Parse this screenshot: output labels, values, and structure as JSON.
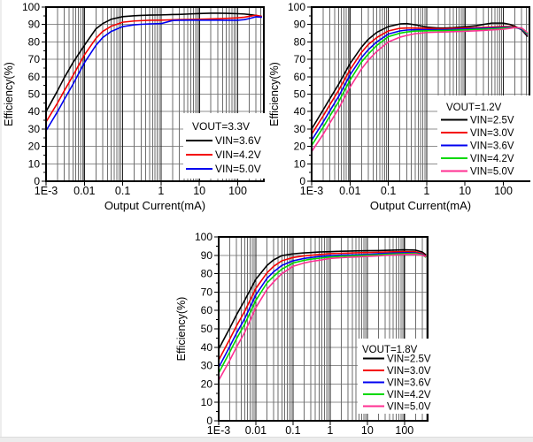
{
  "figure": {
    "description": "DC-DC converter efficiency vs output current characteristic curves",
    "background": "#ffffff"
  },
  "chart_data": [
    {
      "type": "line",
      "title": "",
      "legend_title": "VOUT=3.3V",
      "xlabel": "Output Current(mA)",
      "ylabel": "Efficiency(%)",
      "xscale": "log",
      "xlim": [
        0.001,
        480
      ],
      "ylim": [
        0,
        100
      ],
      "y_tick_step": 10,
      "x_tick_labels": [
        "1E-3",
        "0.01",
        "0.1",
        "1",
        "10",
        "100"
      ],
      "grid": true,
      "legend_position": "inside lower right",
      "x": [
        0.001,
        0.002,
        0.003,
        0.005,
        0.01,
        0.02,
        0.03,
        0.05,
        0.1,
        0.2,
        0.3,
        0.5,
        1,
        2,
        3,
        5,
        10,
        20,
        30,
        50,
        100,
        150,
        200,
        300,
        430
      ],
      "series": [
        {
          "name": "VIN=3.6V",
          "color": "#000000",
          "values": [
            40,
            52,
            59.5,
            68,
            78,
            87.5,
            90.5,
            93,
            94.5,
            95,
            95.2,
            95.4,
            95.5,
            95.7,
            95.8,
            96,
            96.3,
            96.5,
            96.5,
            96.4,
            96.2,
            96,
            95.7,
            95.2,
            94.6
          ]
        },
        {
          "name": "VIN=4.2V",
          "color": "#f40000",
          "values": [
            34,
            45,
            52,
            60.5,
            72.5,
            82,
            86,
            89,
            91.3,
            92,
            92.2,
            92.4,
            92.5,
            92.7,
            92.8,
            92.9,
            93,
            93.2,
            93.3,
            93.5,
            93.8,
            94.2,
            94.7,
            95.3,
            94.6
          ]
        },
        {
          "name": "VIN=5.0V",
          "color": "#0000f0",
          "values": [
            29,
            40,
            47,
            55.5,
            68,
            78,
            82.5,
            86,
            88.8,
            89.8,
            90.1,
            90.3,
            90.5,
            92.3,
            92.4,
            92.5,
            92.5,
            92.5,
            92.5,
            92.4,
            92.4,
            92.8,
            93.4,
            94.4,
            94.2
          ]
        }
      ]
    },
    {
      "type": "line",
      "title": "",
      "legend_title": "VOUT=1.2V",
      "xlabel": "Output Current(mA)",
      "ylabel": "Efficiency(%)",
      "xscale": "log",
      "xlim": [
        0.001,
        480
      ],
      "ylim": [
        0,
        100
      ],
      "y_tick_step": 10,
      "x_tick_labels": [
        "1E-3",
        "0.01",
        "0.1",
        "1",
        "10",
        "100"
      ],
      "grid": true,
      "legend_position": "inside lower right",
      "x": [
        0.001,
        0.002,
        0.003,
        0.005,
        0.01,
        0.02,
        0.03,
        0.05,
        0.1,
        0.2,
        0.3,
        0.5,
        1,
        2,
        3,
        5,
        10,
        20,
        30,
        50,
        100,
        150,
        200,
        300,
        430
      ],
      "series": [
        {
          "name": "VIN=2.5V",
          "color": "#000000",
          "values": [
            30,
            41,
            47.5,
            55.5,
            67.5,
            77,
            81.5,
            85.5,
            88.8,
            90.3,
            90.5,
            89.8,
            88.5,
            88,
            88,
            88.2,
            88.7,
            89.3,
            90,
            90.8,
            90.8,
            90,
            89,
            87,
            83
          ]
        },
        {
          "name": "VIN=3.0V",
          "color": "#f40000",
          "values": [
            27,
            37.5,
            44,
            52,
            64,
            74,
            78.5,
            82.5,
            86.3,
            87.8,
            88,
            88,
            87.8,
            87.6,
            87.6,
            87.8,
            88,
            88.2,
            88.3,
            88.5,
            88.8,
            88.8,
            88.5,
            87.3,
            84
          ]
        },
        {
          "name": "VIN=3.6V",
          "color": "#0000f0",
          "values": [
            23.5,
            34,
            40.5,
            48.5,
            61,
            71,
            75.5,
            80,
            84.5,
            86.3,
            86.8,
            87,
            87,
            87,
            87,
            87.2,
            87.4,
            87.7,
            87.8,
            88,
            88.3,
            88.4,
            88.2,
            87.3,
            84.3
          ]
        },
        {
          "name": "VIN=4.2V",
          "color": "#00d800",
          "values": [
            20.5,
            31,
            37.5,
            45.5,
            58,
            68.5,
            73,
            78,
            83,
            85,
            85.7,
            86.2,
            86.4,
            86.5,
            86.5,
            86.7,
            86.9,
            87.2,
            87.3,
            87.5,
            87.9,
            88.1,
            88.2,
            87.7,
            84.7
          ]
        },
        {
          "name": "VIN=5.0V",
          "color": "#ff2f92",
          "values": [
            17,
            27,
            33.5,
            41.5,
            54,
            64.5,
            69.5,
            74.5,
            80,
            82.7,
            83.7,
            84.7,
            85.4,
            85.6,
            85.7,
            85.9,
            86.1,
            86.4,
            86.6,
            86.9,
            87.3,
            87.8,
            88.2,
            88,
            85.3
          ]
        }
      ]
    },
    {
      "type": "line",
      "title": "",
      "legend_title": "VOUT=1.8V",
      "xlabel": "",
      "ylabel": "Efficiency(%)",
      "xscale": "log",
      "xlim": [
        0.001,
        420
      ],
      "ylim": [
        0,
        100
      ],
      "y_tick_step": 10,
      "x_tick_labels": [
        "1E-3",
        "0.01",
        "0.1",
        "1",
        "10",
        "100"
      ],
      "grid": true,
      "legend_position": "inside lower right",
      "x": [
        0.001,
        0.002,
        0.003,
        0.005,
        0.01,
        0.02,
        0.03,
        0.05,
        0.1,
        0.2,
        0.3,
        0.5,
        1,
        2,
        3,
        5,
        10,
        20,
        30,
        50,
        100,
        200,
        300,
        380
      ],
      "series": [
        {
          "name": "VIN=2.5V",
          "color": "#000000",
          "values": [
            39,
            50.5,
            57.5,
            65.5,
            77,
            84.5,
            87.5,
            89.8,
            90.8,
            91.3,
            91.5,
            91.8,
            92,
            92.2,
            92.3,
            92.4,
            92.5,
            92.6,
            92.7,
            92.8,
            93,
            92.8,
            91.8,
            90.2
          ]
        },
        {
          "name": "VIN=3.0V",
          "color": "#f40000",
          "values": [
            33,
            44.5,
            51.5,
            59.5,
            72,
            80.5,
            84,
            87,
            88.8,
            89.7,
            90,
            90.4,
            90.9,
            91.1,
            91.2,
            91.4,
            91.5,
            91.7,
            91.8,
            91.9,
            92,
            91.9,
            91,
            89.6
          ]
        },
        {
          "name": "VIN=3.6V",
          "color": "#0000f0",
          "values": [
            29,
            40.5,
            47.5,
            55.5,
            68.5,
            77.5,
            81,
            84.5,
            87,
            88.3,
            88.8,
            89.3,
            89.8,
            90.1,
            90.2,
            90.3,
            90.5,
            90.9,
            91,
            91.2,
            91.4,
            91.3,
            90.6,
            89.1
          ]
        },
        {
          "name": "VIN=4.2V",
          "color": "#00d800",
          "values": [
            26,
            37.5,
            44.5,
            52.5,
            65.5,
            75,
            78.5,
            82.5,
            85.8,
            87.3,
            87.9,
            88.4,
            89.1,
            89.5,
            89.6,
            89.8,
            90,
            90.3,
            90.5,
            90.7,
            90.9,
            91,
            90.3,
            88.9
          ]
        },
        {
          "name": "VIN=5.0V",
          "color": "#ff2f92",
          "values": [
            22,
            33,
            40,
            48,
            61.5,
            71.5,
            75.5,
            80,
            84,
            85.8,
            86.6,
            87.3,
            88.3,
            88.7,
            88.9,
            89.1,
            89.4,
            89.7,
            89.9,
            90.1,
            90.4,
            90.6,
            90,
            89.3
          ]
        }
      ]
    }
  ]
}
